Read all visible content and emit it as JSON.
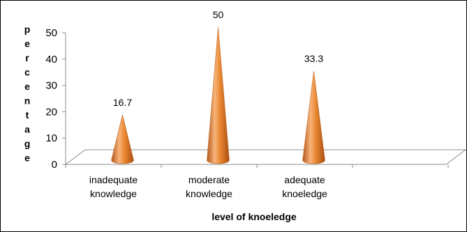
{
  "chart_data": {
    "type": "bar",
    "bar_shape": "cone",
    "categories": [
      [
        "inadequate",
        "knowledge"
      ],
      [
        "moderate",
        "knowledge"
      ],
      [
        "adequate",
        "knoeledge"
      ]
    ],
    "values": [
      16.7,
      50,
      33.3
    ],
    "data_labels": [
      "16.7",
      "50",
      "33.3"
    ],
    "xlabel": "level of knoeledge",
    "ylabel": "percentage",
    "ylim": [
      0,
      50
    ],
    "yticks": [
      "0",
      "10",
      "20",
      "30",
      "40",
      "50"
    ],
    "grid": false,
    "legend": "none",
    "colors": {
      "bar_light": "#f7b47a",
      "bar_mid": "#e8862f",
      "bar_dark": "#b5571a",
      "axis": "#8c8c8c"
    }
  }
}
